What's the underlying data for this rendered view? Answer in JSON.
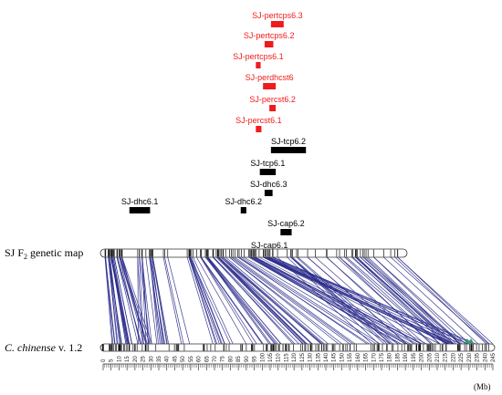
{
  "qtls": [
    {
      "label": "SJ-pertcps6.3",
      "color": "#ee1c1c",
      "start_mb": 105.5,
      "end_mb": 113.5
    },
    {
      "label": "SJ-pertcps6.2",
      "color": "#ee1c1c",
      "start_mb": 101.5,
      "end_mb": 107.0
    },
    {
      "label": "SJ-pertcps6.1",
      "color": "#ee1c1c",
      "start_mb": 96.0,
      "end_mb": 99.0
    },
    {
      "label": "SJ-perdhcst6",
      "color": "#ee1c1c",
      "start_mb": 100.5,
      "end_mb": 108.5
    },
    {
      "label": "SJ-percst6.2",
      "color": "#ee1c1c",
      "start_mb": 104.5,
      "end_mb": 108.5
    },
    {
      "label": "SJ-percst6.1",
      "color": "#ee1c1c",
      "start_mb": 96.0,
      "end_mb": 99.5
    },
    {
      "label": "SJ-tcp6.2",
      "color": "#000000",
      "start_mb": 105.5,
      "end_mb": 127.5
    },
    {
      "label": "SJ-tcp6.1",
      "color": "#000000",
      "start_mb": 98.5,
      "end_mb": 108.5
    },
    {
      "label": "SJ-dhc6.3",
      "color": "#000000",
      "start_mb": 101.5,
      "end_mb": 106.5
    },
    {
      "label": "SJ-dhc6.1",
      "color": "#000000",
      "start_mb": 16.5,
      "end_mb": 29.5
    },
    {
      "label": "SJ-dhc6.2",
      "color": "#000000",
      "start_mb": 86.5,
      "end_mb": 90.0
    },
    {
      "label": "SJ-cap6.2",
      "color": "#000000",
      "start_mb": 111.5,
      "end_mb": 118.5
    },
    {
      "label": "SJ-cap6.1",
      "color": "#000000",
      "start_mb": 101.5,
      "end_mb": 107.5
    }
  ],
  "genetic_map": {
    "label_prefix": "SJ F",
    "label_sub": "2",
    "label_suffix": " genetic map"
  },
  "physical_map": {
    "label_italic": "C. chinense",
    "label_version": " v. 1.2"
  },
  "axis": {
    "unit_label": "(Mb)",
    "ticks": [
      "0",
      "5",
      "10",
      "15",
      "20",
      "25",
      "30",
      "35",
      "40",
      "45",
      "50",
      "55",
      "60",
      "65",
      "70",
      "75",
      "80",
      "85",
      "90",
      "95",
      "100",
      "105",
      "110",
      "115",
      "120",
      "125",
      "130",
      "135",
      "140",
      "145",
      "150",
      "155",
      "160",
      "165",
      "170",
      "175",
      "180",
      "185",
      "190",
      "195",
      "200",
      "205",
      "210",
      "215",
      "220",
      "225",
      "230",
      "235",
      "240",
      "245"
    ]
  },
  "centromere_marker": {
    "color": "#2e9e6e"
  },
  "line_color": "#2b2b8c"
}
